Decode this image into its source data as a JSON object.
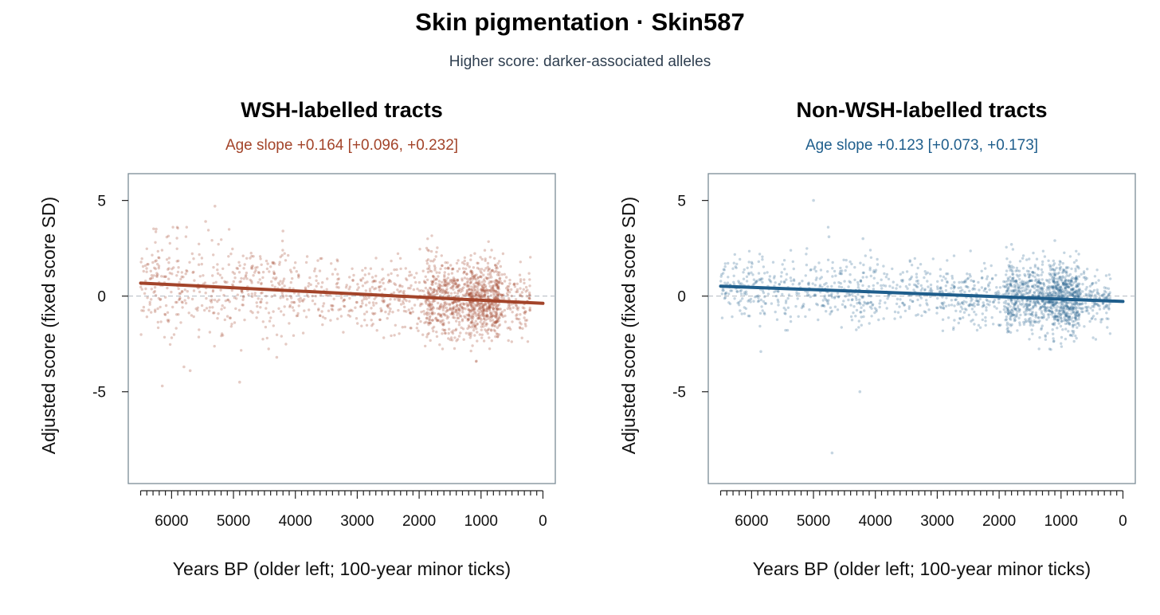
{
  "title": "Skin pigmentation · Skin587",
  "subtitle": "Higher score: darker-associated alleles",
  "chart_data": [
    {
      "type": "scatter",
      "title": "WSH-labelled tracts",
      "slope_label": "Age slope +0.164  [+0.096, +0.232]",
      "color": "#a3442a",
      "xlabel": "Years BP (older left; 100-year minor ticks)",
      "ylabel": "Adjusted score (fixed score SD)",
      "xlim": [
        6700,
        -200
      ],
      "ylim": [
        -9.8,
        6.4
      ],
      "x_reversed": true,
      "x_ticks": [
        6000,
        5000,
        4000,
        3000,
        2000,
        1000,
        0
      ],
      "x_tick_labels": [
        "6000",
        "5000",
        "4000",
        "3000",
        "2000",
        "1000",
        "0"
      ],
      "x_minor_tick_step": 100,
      "x_minor_tick_range": [
        6500,
        0
      ],
      "y_ticks": [
        5,
        0,
        -5
      ],
      "y_tick_labels": [
        "5",
        "0",
        "-5"
      ],
      "reference_line_y": 0,
      "fit_line": {
        "x": [
          6500,
          0
        ],
        "y": [
          0.68,
          -0.38
        ]
      },
      "seed": 587,
      "point_opacity": 0.28,
      "point_density": [
        {
          "x": [
            6500,
            5800
          ],
          "n": 140,
          "sd": 1.3
        },
        {
          "x": [
            5800,
            5000
          ],
          "n": 110,
          "sd": 1.3
        },
        {
          "x": [
            5000,
            4000
          ],
          "n": 170,
          "sd": 1.15
        },
        {
          "x": [
            4000,
            3000
          ],
          "n": 120,
          "sd": 0.95
        },
        {
          "x": [
            3000,
            1900
          ],
          "n": 200,
          "sd": 0.95
        },
        {
          "x": [
            1900,
            1200
          ],
          "n": 450,
          "sd": 1.0
        },
        {
          "x": [
            1200,
            700
          ],
          "n": 550,
          "sd": 1.0
        },
        {
          "x": [
            700,
            200
          ],
          "n": 140,
          "sd": 0.85
        }
      ],
      "outliers": [
        {
          "x": 5300,
          "y": 4.7
        },
        {
          "x": 5450,
          "y": 3.9
        },
        {
          "x": 6250,
          "y": 3.5
        },
        {
          "x": 4200,
          "y": 3.4
        },
        {
          "x": 6150,
          "y": -4.7
        },
        {
          "x": 4900,
          "y": -4.5
        },
        {
          "x": 5800,
          "y": -3.7
        },
        {
          "x": 5700,
          "y": -3.9
        },
        {
          "x": 4300,
          "y": -3.2
        }
      ]
    },
    {
      "type": "scatter",
      "title": "Non-WSH-labelled tracts",
      "slope_label": "Age slope +0.123  [+0.073, +0.173]",
      "color": "#1f5e8c",
      "xlabel": "Years BP (older left; 100-year minor ticks)",
      "ylabel": "Adjusted score (fixed score SD)",
      "xlim": [
        6700,
        -200
      ],
      "ylim": [
        -9.8,
        6.4
      ],
      "x_reversed": true,
      "x_ticks": [
        6000,
        5000,
        4000,
        3000,
        2000,
        1000,
        0
      ],
      "x_tick_labels": [
        "6000",
        "5000",
        "4000",
        "3000",
        "2000",
        "1000",
        "0"
      ],
      "x_minor_tick_step": 100,
      "x_minor_tick_range": [
        6500,
        0
      ],
      "y_ticks": [
        5,
        0,
        -5
      ],
      "y_tick_labels": [
        "5",
        "0",
        "-5"
      ],
      "reference_line_y": 0,
      "fit_line": {
        "x": [
          6500,
          0
        ],
        "y": [
          0.52,
          -0.28
        ]
      },
      "seed": 123,
      "point_opacity": 0.26,
      "point_density": [
        {
          "x": [
            6500,
            5800
          ],
          "n": 130,
          "sd": 0.75
        },
        {
          "x": [
            5800,
            5000
          ],
          "n": 100,
          "sd": 0.8
        },
        {
          "x": [
            5000,
            4000
          ],
          "n": 190,
          "sd": 0.95
        },
        {
          "x": [
            4000,
            3000
          ],
          "n": 130,
          "sd": 0.75
        },
        {
          "x": [
            3000,
            1900
          ],
          "n": 220,
          "sd": 0.8
        },
        {
          "x": [
            1900,
            1200
          ],
          "n": 480,
          "sd": 0.9
        },
        {
          "x": [
            1200,
            700
          ],
          "n": 560,
          "sd": 0.9
        },
        {
          "x": [
            700,
            200
          ],
          "n": 140,
          "sd": 0.7
        }
      ],
      "outliers": [
        {
          "x": 5000,
          "y": 5.0
        },
        {
          "x": 4750,
          "y": 3.1
        },
        {
          "x": 4200,
          "y": 3.0
        },
        {
          "x": 4250,
          "y": -5.0
        },
        {
          "x": 4700,
          "y": -8.2
        },
        {
          "x": 5850,
          "y": -2.9
        },
        {
          "x": 1100,
          "y": 2.9
        },
        {
          "x": 1800,
          "y": 2.7
        }
      ]
    }
  ]
}
